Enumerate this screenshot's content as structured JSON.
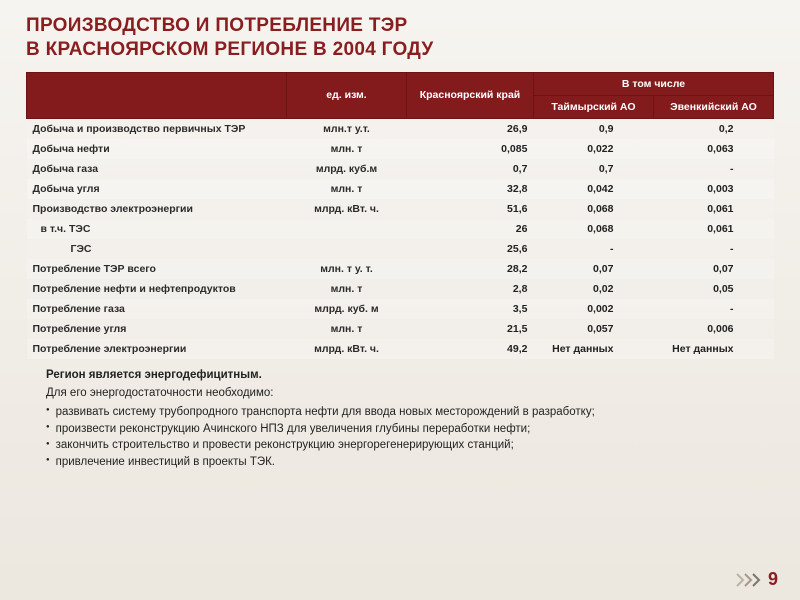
{
  "colors": {
    "brand": "#8a1d1f",
    "header_bg": "#831a1b",
    "header_border": "#6d1314",
    "text": "#222222"
  },
  "title_line1": "ПРОИЗВОДСТВО И ПОТРЕБЛЕНИЕ ТЭР",
  "title_line2": "В КРАСНОЯРСКОМ РЕГИОНЕ В 2004 ГОДУ",
  "table": {
    "header": {
      "unit": "ед. изм.",
      "region": "Красноярский край",
      "subgroup": "В том числе",
      "sub1": "Таймырский АО",
      "sub2": "Эвенкийский АО"
    },
    "rows": [
      {
        "name": "Добыча и производство первичных ТЭР",
        "unit": "млн.т у.т.",
        "v1": "26,9",
        "v2": "0,9",
        "v3": "0,2"
      },
      {
        "name": "Добыча нефти",
        "unit": "млн. т",
        "v1": "0,085",
        "v2": "0,022",
        "v3": "0,063"
      },
      {
        "name": "Добыча газа",
        "unit": "млрд. куб.м",
        "v1": "0,7",
        "v2": "0,7",
        "v3": "-"
      },
      {
        "name": "Добыча угля",
        "unit": "млн.  т",
        "v1": "32,8",
        "v2": "0,042",
        "v3": "0,003"
      },
      {
        "name": "Производство электроэнергии",
        "unit": "млрд. кВт. ч.",
        "v1": "51,6",
        "v2": "0,068",
        "v3": "0,061"
      },
      {
        "name": "в т.ч. ТЭС",
        "unit": "",
        "v1": "26",
        "v2": "0,068",
        "v3": "0,061",
        "indent": 1
      },
      {
        "name": "ГЭС",
        "unit": "",
        "v1": "25,6",
        "v2": "-",
        "v3": "-",
        "indent": 2
      },
      {
        "name": "Потребление ТЭР всего",
        "unit": "млн. т у. т.",
        "v1": "28,2",
        "v2": "0,07",
        "v3": "0,07"
      },
      {
        "name": "Потребление нефти и нефтепродуктов",
        "unit": "млн.  т",
        "v1": "2,8",
        "v2": "0,02",
        "v3": "0,05"
      },
      {
        "name": "Потребление газа",
        "unit": "млрд. куб. м",
        "v1": "3,5",
        "v2": "0,002",
        "v3": "-"
      },
      {
        "name": "Потребление угля",
        "unit": "млн.  т",
        "v1": "21,5",
        "v2": "0,057",
        "v3": "0,006"
      },
      {
        "name": "Потребление электроэнергии",
        "unit": "млрд. кВт. ч.",
        "v1": "49,2",
        "v2": "Нет данных",
        "v3": "Нет данных"
      }
    ]
  },
  "notes": {
    "lead": "Регион является энергодефицитным.",
    "intro": "Для его энергодостаточности необходимо:",
    "bullets": [
      "развивать систему трубопродного транспорта нефти  для ввода новых месторождений в разработку;",
      "произвести реконструкцию Ачинского НПЗ для увеличения глубины переработки нефти;",
      "закончить строительство и провести реконструкцию энергорегенерирующих станций;",
      "привлечение инвестиций в проекты ТЭК."
    ]
  },
  "page_number": "9"
}
